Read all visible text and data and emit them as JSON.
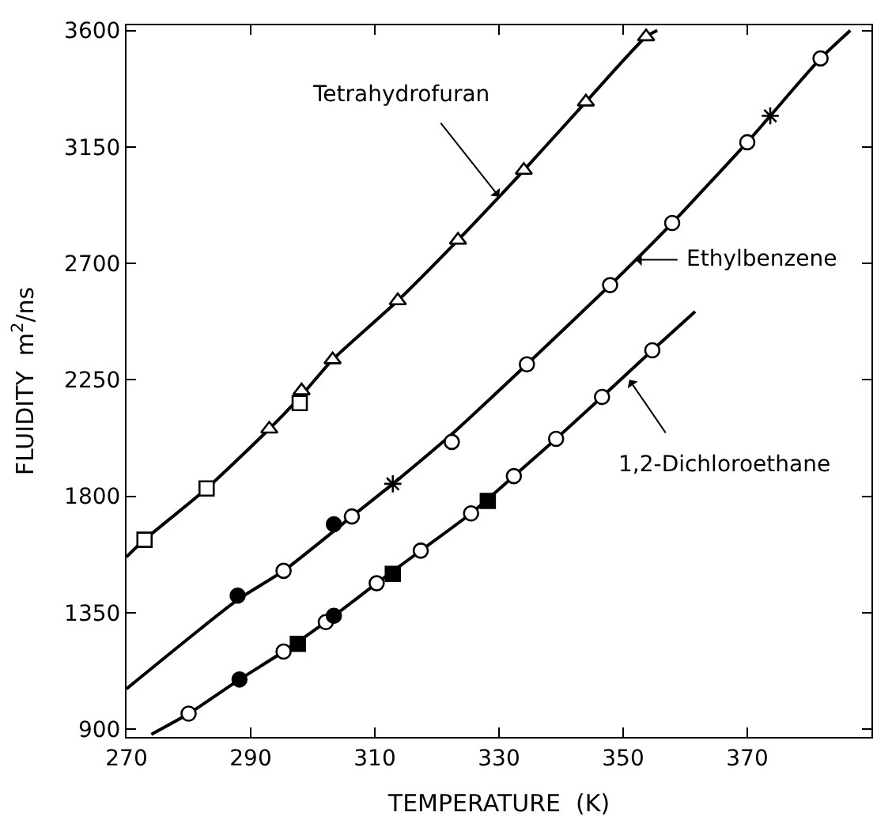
{
  "chart_data": {
    "type": "scatter",
    "xlabel": "TEMPERATURE  (K)",
    "ylabel": "FLUIDITY  m$^{2}$/ns",
    "xlim": [
      270,
      390
    ],
    "ylim": [
      870,
      3620
    ],
    "xticks": [
      270,
      290,
      310,
      330,
      350,
      370
    ],
    "yticks": [
      900,
      1350,
      1800,
      2250,
      2700,
      3150,
      3600
    ],
    "series": [
      {
        "type": "line",
        "color": "#000000",
        "marker": "none",
        "line_style": "solid",
        "x": [
          270,
          272.9,
          282.9,
          293,
          298.2,
          303.2,
          313.7,
          323.4,
          334,
          344,
          353.7,
          355.5
        ],
        "values": [
          1566,
          1632,
          1830,
          2060,
          2190,
          2328,
          2556,
          2790,
          3060,
          3324,
          3576,
          3600
        ]
      },
      {
        "color": "#ffffff",
        "marker": "triangle",
        "x": [
          293,
          298.2,
          303.2,
          313.7,
          323.4,
          334,
          344,
          353.7
        ],
        "values": [
          2060,
          2208,
          2328,
          2556,
          2790,
          3060,
          3324,
          3576
        ]
      },
      {
        "color": "#ffffff",
        "marker": "square",
        "x": [
          272.9,
          282.9,
          297.9
        ],
        "values": [
          1632,
          1830,
          2160
        ]
      },
      {
        "type": "line",
        "color": "#000000",
        "marker": "none",
        "line_style": "solid",
        "x": [
          270,
          287.9,
          295.3,
          306.3,
          312.9,
          322.4,
          334.5,
          347.9,
          357.9,
          370,
          373.7,
          381.8,
          386.6
        ],
        "values": [
          1056,
          1400,
          1512,
          1722,
          1848,
          2040,
          2310,
          2616,
          2856,
          3168,
          3270,
          3492,
          3600
        ]
      },
      {
        "color": "#ffffff",
        "marker": "circle",
        "x": [
          295.3,
          306.3,
          322.4,
          334.5,
          347.9,
          357.9,
          370,
          381.8
        ],
        "values": [
          1512,
          1722,
          2010,
          2310,
          2616,
          2856,
          3168,
          3492
        ]
      },
      {
        "color": "#000000",
        "marker": "circle",
        "x": [
          287.9,
          303.4
        ],
        "values": [
          1416,
          1692
        ]
      },
      {
        "color": "#000000",
        "marker": "cross",
        "x": [
          312.9,
          373.7
        ],
        "values": [
          1848,
          3270
        ]
      },
      {
        "type": "line",
        "color": "#000000",
        "marker": "none",
        "line_style": "solid",
        "x": [
          274,
          280,
          288.2,
          295.3,
          302.1,
          310.3,
          317.4,
          325.5,
          332.4,
          339.2,
          346.6,
          354.7,
          361.6
        ],
        "values": [
          880,
          960,
          1092,
          1200,
          1314,
          1464,
          1590,
          1734,
          1878,
          2022,
          2184,
          2364,
          2514
        ]
      },
      {
        "color": "#ffffff",
        "marker": "circle",
        "x": [
          280,
          295.3,
          302.1,
          310.3,
          317.4,
          325.5,
          332.4,
          339.2,
          346.6,
          354.7
        ],
        "values": [
          960,
          1200,
          1314,
          1464,
          1590,
          1734,
          1878,
          2022,
          2184,
          2364
        ]
      },
      {
        "color": "#000000",
        "marker": "circle",
        "x": [
          288.2,
          303.4
        ],
        "values": [
          1092,
          1338
        ]
      },
      {
        "color": "#000000",
        "marker": "square",
        "x": [
          297.6,
          312.9,
          328.2
        ],
        "values": [
          1230,
          1500,
          1782
        ]
      }
    ],
    "annotations": [
      {
        "text": "Tetrahydrofuran",
        "x": 330,
        "y": 2958
      },
      {
        "text": "Ethylbenzene",
        "x": 352,
        "y": 2714
      },
      {
        "text": "1,2-Dichloroethane",
        "x": 351,
        "y": 2250
      }
    ]
  }
}
